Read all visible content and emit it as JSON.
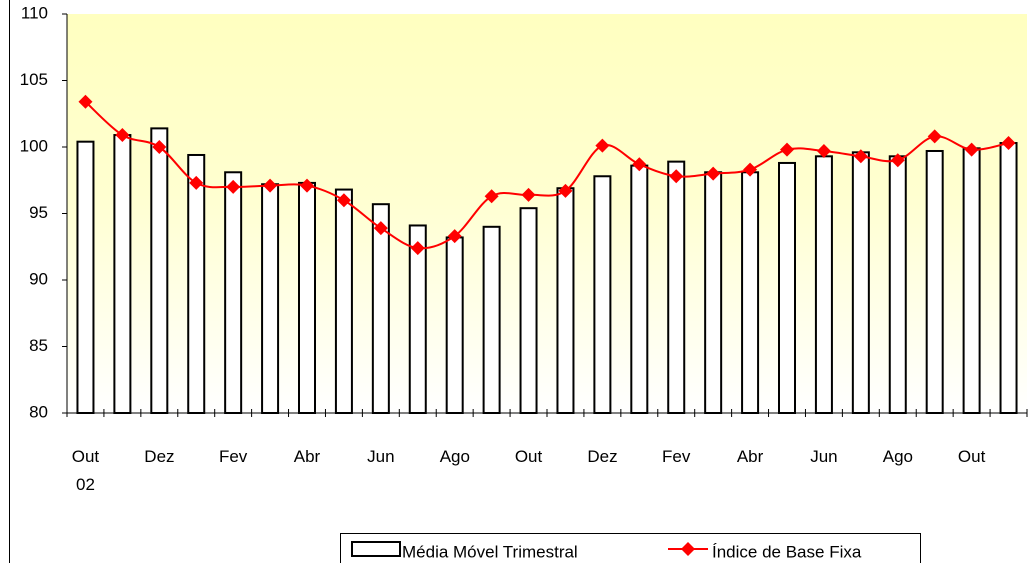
{
  "chart_data": {
    "type": "bar-line",
    "categories": [
      "Out 02",
      null,
      "Dez",
      null,
      "Fev",
      null,
      "Abr",
      null,
      "Jun",
      null,
      "Ago",
      null,
      "Out",
      null,
      "Dez",
      null,
      "Fev",
      null,
      "Abr",
      null,
      "Jun",
      null,
      "Ago",
      null,
      "Out",
      null
    ],
    "series": [
      {
        "name": "Média Móvel Trimestral",
        "type": "bar",
        "color": "#ffffff",
        "values": [
          100.4,
          100.9,
          101.4,
          99.4,
          98.1,
          97.2,
          97.3,
          96.8,
          95.7,
          94.1,
          93.2,
          94.0,
          95.4,
          96.9,
          97.8,
          98.6,
          98.9,
          98.1,
          98.1,
          98.8,
          99.3,
          99.6,
          99.3,
          99.7,
          99.9,
          100.3
        ]
      },
      {
        "name": "Índice de Base Fixa",
        "type": "line",
        "color": "#ff0000",
        "values": [
          103.4,
          100.9,
          100.0,
          97.3,
          97.0,
          97.1,
          97.1,
          96.0,
          93.9,
          92.4,
          93.3,
          96.3,
          96.4,
          96.7,
          100.1,
          98.7,
          97.8,
          98.0,
          98.3,
          99.8,
          99.7,
          99.3,
          99.0,
          100.8,
          99.8,
          100.3
        ]
      }
    ],
    "ylim": [
      80,
      110
    ],
    "yticks": [
      80,
      85,
      90,
      95,
      100,
      105,
      110
    ]
  }
}
